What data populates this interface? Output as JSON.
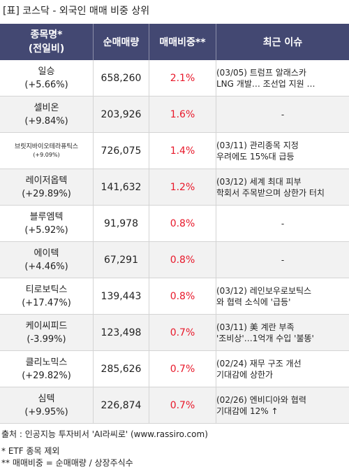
{
  "title": "[표] 코스닥 - 외국인 매매 비중 상위",
  "header": {
    "name_line1": "종목명*",
    "name_line2": "(전일비)",
    "volume": "순매매량",
    "ratio": "매매비중**",
    "issue": "최근 이슈"
  },
  "rows": [
    {
      "name": "일승",
      "change": "(+5.66%)",
      "volume": "658,260",
      "ratio": "2.1%",
      "issue1": "(03/05) 트럼프 알래스카",
      "issue2": "LNG 개발… 조선업 지원 …"
    },
    {
      "name": "셀비온",
      "change": "(+9.84%)",
      "volume": "203,926",
      "ratio": "1.6%",
      "issue1": "-",
      "issue2": ""
    },
    {
      "name": "브릿지바이오테라퓨틱스",
      "change": "(+9.09%)",
      "volume": "726,075",
      "ratio": "1.4%",
      "issue1": "(03/11) 관리종목 지정",
      "issue2": "우려에도 15%대 급등"
    },
    {
      "name": "레이저옵텍",
      "change": "(+29.89%)",
      "volume": "141,632",
      "ratio": "1.2%",
      "issue1": "(03/12) 세계 최대 피부",
      "issue2": "학회서 주목받으며 상한가 터치"
    },
    {
      "name": "블루엠텍",
      "change": "(+5.92%)",
      "volume": "91,978",
      "ratio": "0.8%",
      "issue1": "-",
      "issue2": ""
    },
    {
      "name": "에이텍",
      "change": "(+4.46%)",
      "volume": "67,291",
      "ratio": "0.8%",
      "issue1": "-",
      "issue2": ""
    },
    {
      "name": "티로보틱스",
      "change": "(+17.47%)",
      "volume": "139,443",
      "ratio": "0.8%",
      "issue1": "(03/12) 레인보우로보틱스",
      "issue2": "와 협력 소식에 '급등'"
    },
    {
      "name": "케이씨피드",
      "change": "(-3.99%)",
      "volume": "123,498",
      "ratio": "0.7%",
      "issue1": "(03/11) 美 계란 부족",
      "issue2": "'조비상'…1억개 수입 '불똥'"
    },
    {
      "name": "클리노믹스",
      "change": "(+29.82%)",
      "volume": "285,626",
      "ratio": "0.7%",
      "issue1": "(02/24) 재무 구조 개선",
      "issue2": " 기대감에 상한가"
    },
    {
      "name": "심텍",
      "change": "(+9.95%)",
      "volume": "226,874",
      "ratio": "0.7%",
      "issue1": "(02/26) 엔비디아와 협력",
      "issue2": " 기대감에 12% ↑"
    }
  ],
  "footer": {
    "source": "출처 : 인공지능 투자비서 'AI라씨로' (www.rassiro.com)",
    "note1": "* ETF 종목 제외",
    "note2": "** 매매비중 = 순매매량 / 상장주식수"
  }
}
